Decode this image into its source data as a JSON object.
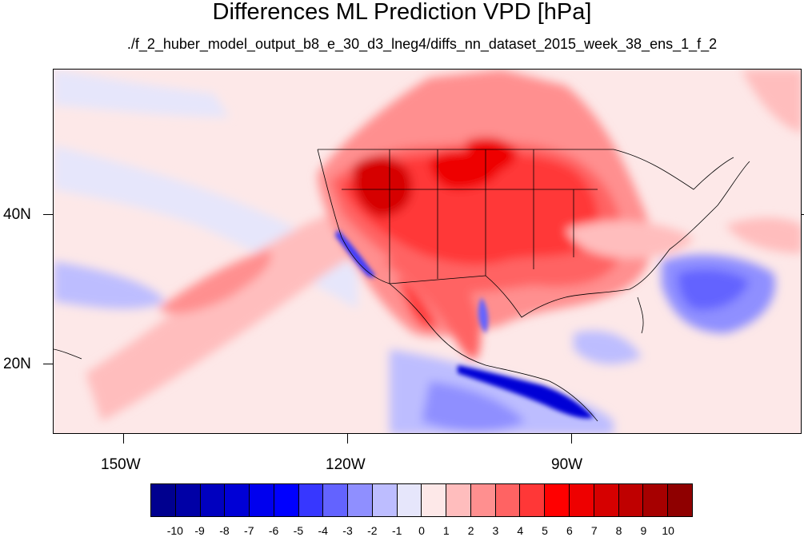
{
  "title": "Differences ML Prediction VPD [hPa]",
  "subtitle": "./f_2_huber_model_output_b8_e_30_d3_lneg4/diffs_nn_dataset_2015_week_38_ens_1_f_2",
  "lat_labels": [
    "40N",
    "20N"
  ],
  "lon_labels": [
    "150W",
    "120W",
    "90W"
  ],
  "colorbar": {
    "labels": [
      "-10",
      "-9",
      "-8",
      "-7",
      "-6",
      "-5",
      "-4",
      "-3",
      "-2",
      "-1",
      "0",
      "1",
      "2",
      "3",
      "4",
      "5",
      "6",
      "7",
      "8",
      "9",
      "10"
    ],
    "colors": [
      "#00008f",
      "#0000a6",
      "#0000bf",
      "#0000d6",
      "#0000ee",
      "#0000ff",
      "#3737ff",
      "#6363ff",
      "#8f8fff",
      "#bdbdff",
      "#e6e6fb",
      "#fde8e8",
      "#ffbdbd",
      "#ff8f8f",
      "#ff6363",
      "#ff3737",
      "#ff0000",
      "#ee0000",
      "#d60000",
      "#bf0000",
      "#a60000",
      "#8f0000"
    ]
  },
  "map": {
    "lon_range": [
      -160,
      -62
    ],
    "lat_range": [
      11,
      60
    ]
  }
}
